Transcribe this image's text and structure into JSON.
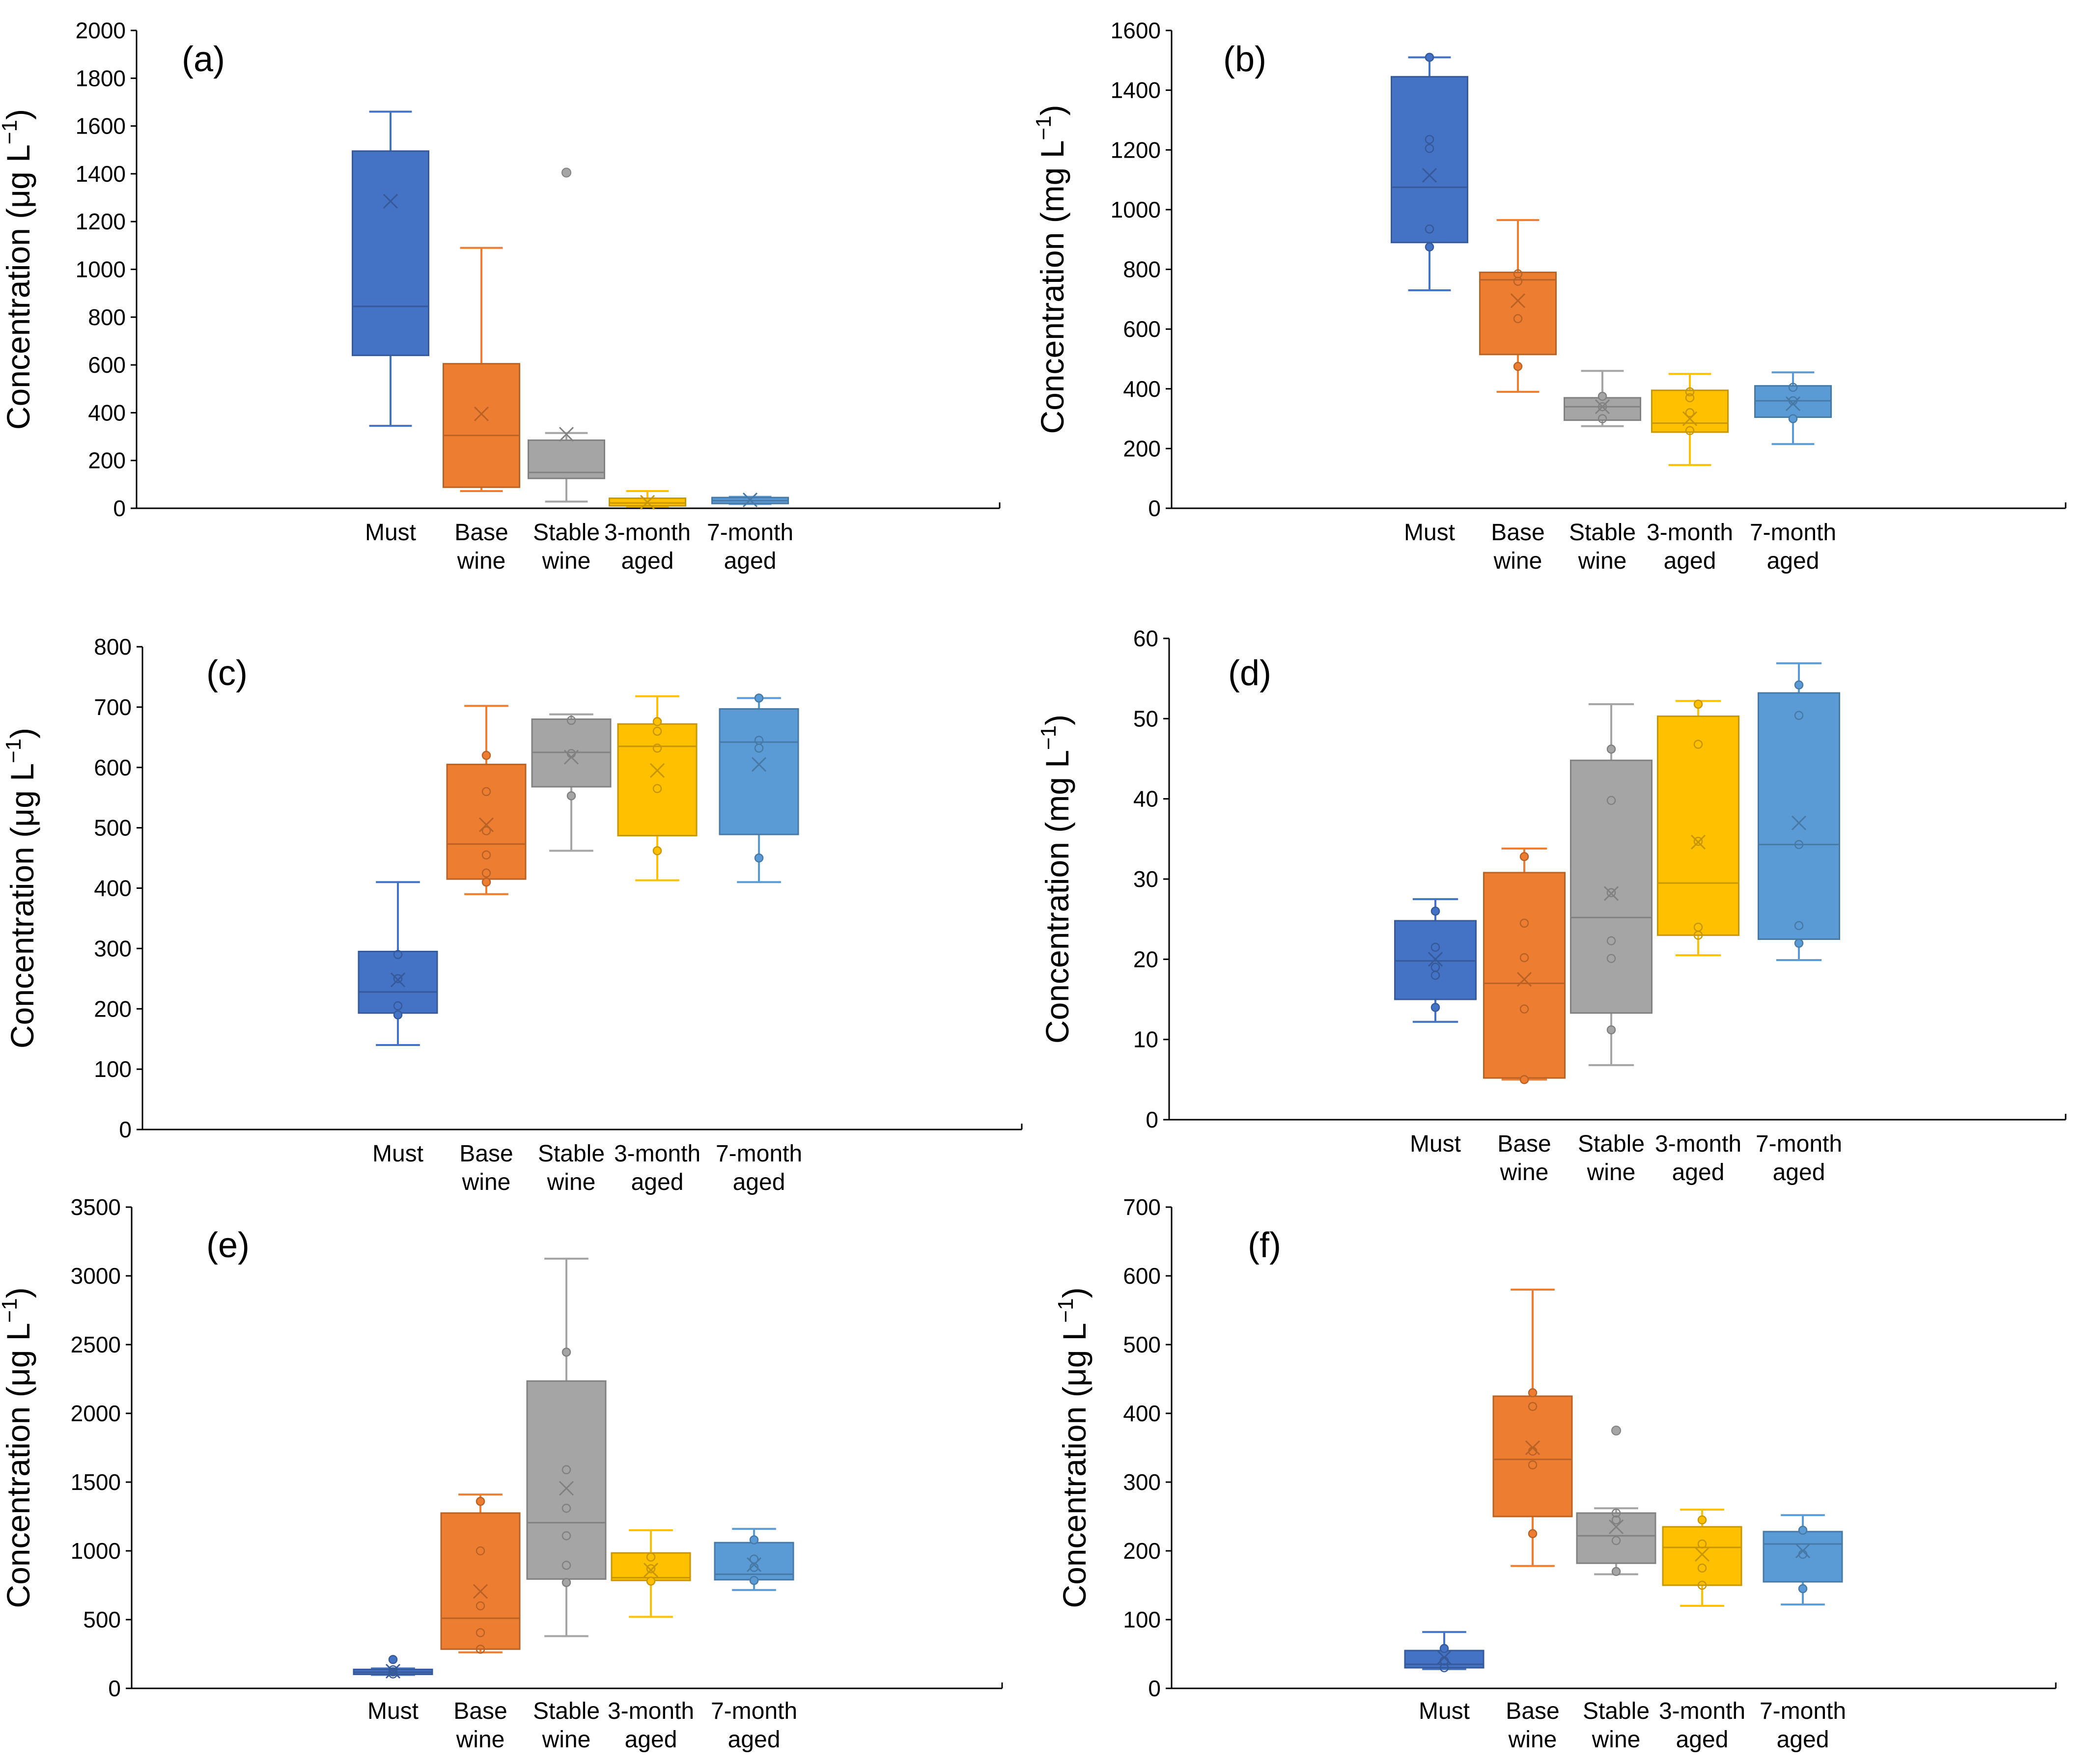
{
  "colors": {
    "Must": "#4472C4",
    "Base wine": "#ED7D31",
    "Stable wine": "#A5A5A5",
    "3-month aged": "#FFC000",
    "7-month aged": "#5B9BD5"
  },
  "categories": [
    [
      "Must"
    ],
    [
      "Base",
      "wine"
    ],
    [
      "Stable",
      "wine"
    ],
    [
      "3-month",
      "aged"
    ],
    [
      "7-month",
      "aged"
    ]
  ],
  "chart_data": [
    {
      "type": "box",
      "panel": "(a)",
      "ylabel_main": "Concentration (μg L",
      "ylabel_sup": "−1",
      "ylabel_close": ")",
      "ylim": [
        0,
        2000
      ],
      "yticks": [
        0,
        200,
        400,
        600,
        800,
        1000,
        1200,
        1400,
        1600,
        1800,
        2000
      ],
      "series": [
        {
          "name": "Must",
          "min": 345,
          "q1": 640,
          "median": 845,
          "q3": 1495,
          "max": 1660,
          "mean": 1285,
          "points": [],
          "outliers": []
        },
        {
          "name": "Base wine",
          "min": 72,
          "q1": 88,
          "median": 305,
          "q3": 605,
          "max": 1090,
          "mean": 395,
          "points": [],
          "outliers": []
        },
        {
          "name": "Stable wine",
          "min": 28,
          "q1": 125,
          "median": 150,
          "q3": 285,
          "max": 315,
          "mean": 310,
          "points": [],
          "outliers": [
            1405
          ]
        },
        {
          "name": "3-month aged",
          "min": 8,
          "q1": 10,
          "median": 22,
          "q3": 42,
          "max": 72,
          "mean": 25,
          "points": [],
          "outliers": []
        },
        {
          "name": "7-month aged",
          "min": 18,
          "q1": 20,
          "median": 32,
          "q3": 45,
          "max": 48,
          "mean": 35,
          "points": [],
          "outliers": []
        }
      ]
    },
    {
      "type": "box",
      "panel": "(b)",
      "ylabel_main": "Concentration (mg L",
      "ylabel_sup": "−1",
      "ylabel_close": ")",
      "ylim": [
        0,
        1600
      ],
      "yticks": [
        0,
        200,
        400,
        600,
        800,
        1000,
        1200,
        1400,
        1600
      ],
      "series": [
        {
          "name": "Must",
          "min": 730,
          "q1": 890,
          "median": 1075,
          "q3": 1445,
          "max": 1510,
          "mean": 1115,
          "points": [
            875,
            935,
            1205,
            1235,
            1510
          ],
          "outliers": []
        },
        {
          "name": "Base wine",
          "min": 390,
          "q1": 515,
          "median": 765,
          "q3": 790,
          "max": 965,
          "mean": 695,
          "points": [
            475,
            635,
            760,
            785
          ],
          "outliers": []
        },
        {
          "name": "Stable wine",
          "min": 275,
          "q1": 295,
          "median": 340,
          "q3": 370,
          "max": 460,
          "mean": 340,
          "points": [
            300,
            340,
            375
          ],
          "outliers": []
        },
        {
          "name": "3-month aged",
          "min": 145,
          "q1": 255,
          "median": 285,
          "q3": 395,
          "max": 450,
          "mean": 300,
          "points": [
            260,
            320,
            370,
            390
          ],
          "outliers": []
        },
        {
          "name": "7-month aged",
          "min": 215,
          "q1": 305,
          "median": 360,
          "q3": 410,
          "max": 455,
          "mean": 350,
          "points": [
            300,
            360,
            405
          ],
          "outliers": []
        }
      ]
    },
    {
      "type": "box",
      "panel": "(c)",
      "ylabel_main": "Concentration (μg L",
      "ylabel_sup": "−1",
      "ylabel_close": ")",
      "ylim": [
        0,
        800
      ],
      "yticks": [
        0,
        100,
        200,
        300,
        400,
        500,
        600,
        700,
        800
      ],
      "series": [
        {
          "name": "Must",
          "min": 140,
          "q1": 193,
          "median": 228,
          "q3": 295,
          "max": 410,
          "mean": 248,
          "points": [
            190,
            205,
            250,
            290
          ],
          "outliers": []
        },
        {
          "name": "Base wine",
          "min": 390,
          "q1": 415,
          "median": 473,
          "q3": 605,
          "max": 702,
          "mean": 505,
          "points": [
            410,
            425,
            455,
            495,
            560,
            620
          ],
          "outliers": []
        },
        {
          "name": "Stable wine",
          "min": 462,
          "q1": 568,
          "median": 625,
          "q3": 680,
          "max": 688,
          "mean": 617,
          "points": [
            553,
            623,
            678
          ],
          "outliers": []
        },
        {
          "name": "3-month aged",
          "min": 413,
          "q1": 487,
          "median": 635,
          "q3": 672,
          "max": 718,
          "mean": 595,
          "points": [
            462,
            565,
            632,
            660,
            676
          ],
          "outliers": []
        },
        {
          "name": "7-month aged",
          "min": 410,
          "q1": 489,
          "median": 642,
          "q3": 697,
          "max": 715,
          "mean": 605,
          "points": [
            450,
            632,
            645,
            715
          ],
          "outliers": []
        }
      ]
    },
    {
      "type": "box",
      "panel": "(d)",
      "ylabel_main": "Concentration (mg L",
      "ylabel_sup": "−1",
      "ylabel_close": ")",
      "ylim": [
        0,
        60
      ],
      "yticks": [
        0,
        10,
        20,
        30,
        40,
        50,
        60
      ],
      "series": [
        {
          "name": "Must",
          "min": 12.2,
          "q1": 15,
          "median": 19.8,
          "q3": 24.8,
          "max": 27.5,
          "mean": 20,
          "points": [
            14,
            18,
            19,
            21.5,
            26
          ],
          "outliers": []
        },
        {
          "name": "Base wine",
          "min": 5,
          "q1": 5.2,
          "median": 17,
          "q3": 30.8,
          "max": 33.8,
          "mean": 17.5,
          "points": [
            5,
            13.8,
            20.2,
            24.5,
            32.8
          ],
          "outliers": []
        },
        {
          "name": "Stable wine",
          "min": 6.8,
          "q1": 13.3,
          "median": 25.2,
          "q3": 44.8,
          "max": 51.8,
          "mean": 28.2,
          "points": [
            11.2,
            20.1,
            22.3,
            28.3,
            39.8,
            46.2
          ],
          "outliers": []
        },
        {
          "name": "3-month aged",
          "min": 20.5,
          "q1": 23,
          "median": 29.5,
          "q3": 50.3,
          "max": 52.2,
          "mean": 34.6,
          "points": [
            23,
            24,
            34.7,
            46.8,
            51.8
          ],
          "outliers": []
        },
        {
          "name": "7-month aged",
          "min": 19.9,
          "q1": 22.5,
          "median": 34.3,
          "q3": 53.2,
          "max": 56.9,
          "mean": 37,
          "points": [
            22,
            24.2,
            34.3,
            50.4,
            54.2
          ],
          "outliers": []
        }
      ]
    },
    {
      "type": "box",
      "panel": "(e)",
      "ylabel_main": "Concentration (μg L",
      "ylabel_sup": "−1",
      "ylabel_close": ")",
      "ylim": [
        0,
        3500
      ],
      "yticks": [
        0,
        500,
        1000,
        1500,
        2000,
        2500,
        3000,
        3500
      ],
      "series": [
        {
          "name": "Must",
          "min": 98,
          "q1": 102,
          "median": 118,
          "q3": 138,
          "max": 145,
          "mean": 125,
          "points": [
            105,
            120,
            135,
            210
          ],
          "outliers": []
        },
        {
          "name": "Base wine",
          "min": 262,
          "q1": 285,
          "median": 510,
          "q3": 1275,
          "max": 1410,
          "mean": 705,
          "points": [
            285,
            405,
            600,
            1000,
            1360
          ],
          "outliers": []
        },
        {
          "name": "Stable wine",
          "min": 380,
          "q1": 795,
          "median": 1205,
          "q3": 2235,
          "max": 3125,
          "mean": 1455,
          "points": [
            770,
            895,
            1110,
            1310,
            1590,
            2445
          ],
          "outliers": []
        },
        {
          "name": "3-month aged",
          "min": 520,
          "q1": 785,
          "median": 805,
          "q3": 985,
          "max": 1150,
          "mean": 860,
          "points": [
            780,
            870,
            955
          ],
          "outliers": []
        },
        {
          "name": "7-month aged",
          "min": 715,
          "q1": 790,
          "median": 830,
          "q3": 1060,
          "max": 1160,
          "mean": 900,
          "points": [
            785,
            880,
            940,
            1080
          ],
          "outliers": []
        }
      ]
    },
    {
      "type": "box",
      "panel": "(f)",
      "ylabel_main": "Concentration (μg L",
      "ylabel_sup": "−1",
      "ylabel_close": ")",
      "ylim": [
        0,
        700
      ],
      "yticks": [
        0,
        100,
        200,
        300,
        400,
        500,
        600,
        700
      ],
      "series": [
        {
          "name": "Must",
          "min": 28,
          "q1": 30,
          "median": 35,
          "q3": 55,
          "max": 82,
          "mean": 45,
          "points": [
            30,
            40,
            58
          ],
          "outliers": []
        },
        {
          "name": "Base wine",
          "min": 178,
          "q1": 250,
          "median": 333,
          "q3": 425,
          "max": 580,
          "mean": 350,
          "points": [
            225,
            325,
            345,
            410,
            430
          ],
          "outliers": []
        },
        {
          "name": "Stable wine",
          "min": 166,
          "q1": 182,
          "median": 222,
          "q3": 255,
          "max": 262,
          "mean": 235,
          "points": [
            170,
            215,
            245,
            255
          ],
          "outliers": [
            375
          ]
        },
        {
          "name": "3-month aged",
          "min": 120,
          "q1": 150,
          "median": 205,
          "q3": 235,
          "max": 260,
          "mean": 195,
          "points": [
            150,
            175,
            210,
            245
          ],
          "outliers": []
        },
        {
          "name": "7-month aged",
          "min": 122,
          "q1": 155,
          "median": 210,
          "q3": 228,
          "max": 252,
          "mean": 200,
          "points": [
            145,
            195,
            230
          ],
          "outliers": []
        }
      ]
    }
  ]
}
